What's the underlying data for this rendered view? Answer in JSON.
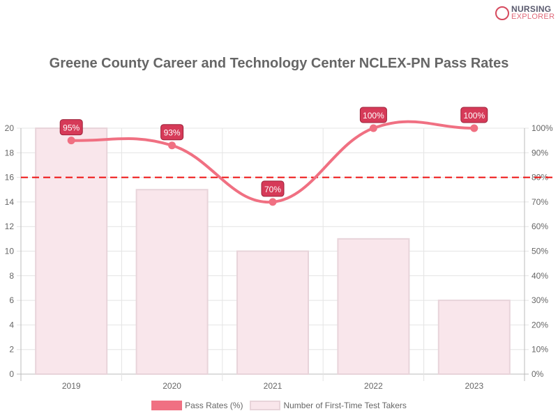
{
  "logo": {
    "line1": "NURSING",
    "line2": "EXPLORER",
    "monogram": "NE"
  },
  "chart_data": {
    "type": "bar+line",
    "title": "Greene County Career and Technology Center NCLEX-PN Pass Rates",
    "categories": [
      "2019",
      "2020",
      "2021",
      "2022",
      "2023"
    ],
    "series": [
      {
        "name": "Pass Rates (%)",
        "type": "line",
        "axis": "right",
        "values": [
          95,
          93,
          70,
          100,
          100
        ],
        "labels": [
          "95%",
          "93%",
          "70%",
          "100%",
          "100%"
        ],
        "color": "#f07082"
      },
      {
        "name": "Number of First-Time Test Takers",
        "type": "bar",
        "axis": "left",
        "values": [
          20,
          15,
          10,
          11,
          6
        ],
        "color": "#f9e6eb"
      }
    ],
    "left_axis": {
      "ylim": [
        0,
        20
      ],
      "ticks": [
        "0",
        "2",
        "4",
        "6",
        "8",
        "10",
        "12",
        "14",
        "16",
        "18",
        "20"
      ]
    },
    "right_axis": {
      "ylim": [
        0,
        100
      ],
      "ticks": [
        "0%",
        "10%",
        "20%",
        "30%",
        "40%",
        "50%",
        "60%",
        "70%",
        "80%",
        "90%",
        "100%"
      ]
    },
    "reference_line": {
      "value": 80,
      "axis": "right",
      "style": "dashed",
      "color": "#ee1111"
    },
    "grid": true,
    "legend": "bottom"
  }
}
